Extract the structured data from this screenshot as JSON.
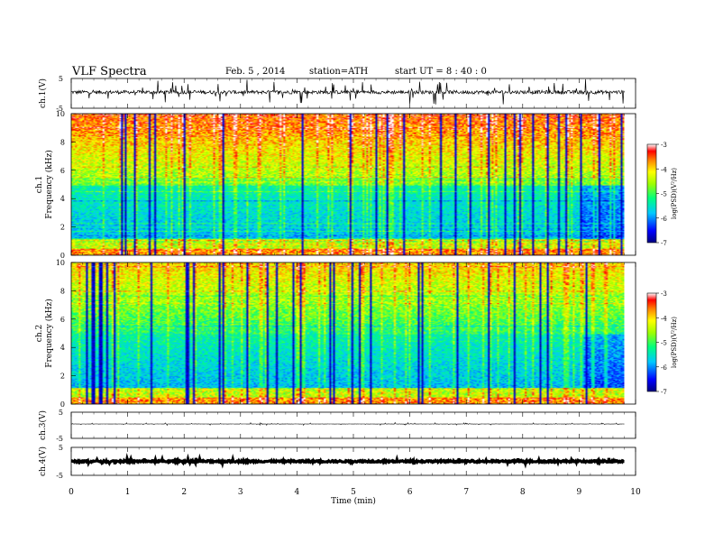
{
  "header": {
    "title": "VLF  Spectra",
    "date": "Feb. 5  , 2014",
    "station": "station=ATH",
    "start_ut": "start  UT  =   8  : 40 : 0"
  },
  "chart_data": [
    {
      "id": "ch1-waveform",
      "type": "line",
      "ylabel": "ch.1(V)",
      "yticks": [
        "5",
        "-5"
      ],
      "ylim": [
        -5,
        5
      ],
      "xlim": [
        0,
        10
      ],
      "data_end_min": 9.8,
      "baseline": 0.4,
      "noise": 0.6,
      "spikes": 1.6,
      "line_color": "#000000"
    },
    {
      "id": "ch1-spectrogram",
      "type": "heatmap",
      "ylabel": "Frequency  (kHz)",
      "channel_label": "ch.1",
      "yticks": [
        "10",
        "8",
        "6",
        "4",
        "2",
        "0"
      ],
      "ylim": [
        0,
        10
      ],
      "xlim": [
        0,
        10
      ],
      "data_end_min": 9.8,
      "zlim": [
        -7,
        -3
      ],
      "colorbar_label": "log(PSD)(V²/Hz)",
      "colorbar_ticks": [
        "-3",
        "-4",
        "-5",
        "-6",
        "-7"
      ]
    },
    {
      "id": "ch2-spectrogram",
      "type": "heatmap",
      "ylabel": "Frequency  (kHz)",
      "channel_label": "ch.2",
      "yticks": [
        "10",
        "8",
        "6",
        "4",
        "2",
        "0"
      ],
      "ylim": [
        0,
        10
      ],
      "xlim": [
        0,
        10
      ],
      "data_end_min": 9.8,
      "zlim": [
        -7,
        -3
      ],
      "colorbar_label": "log(PSD)(V²/Hz)",
      "colorbar_ticks": [
        "-3",
        "-4",
        "-5",
        "-6",
        "-7"
      ]
    },
    {
      "id": "ch3-waveform",
      "type": "line",
      "ylabel": "ch.3(V)",
      "yticks": [
        "5",
        "-5"
      ],
      "ylim": [
        -5,
        5
      ],
      "xlim": [
        0,
        10
      ],
      "data_end_min": 9.8,
      "baseline": 0.5,
      "noise": 0.04,
      "spikes": 0.2,
      "line_color": "#000000"
    },
    {
      "id": "ch4-waveform",
      "type": "line",
      "ylabel": "ch.4(V)",
      "yticks": [
        "5",
        "-5"
      ],
      "ylim": [
        -5,
        5
      ],
      "xlim": [
        0,
        10
      ],
      "data_end_min": 9.8,
      "baseline": 0.0,
      "noise": 0.3,
      "spikes": 0.4,
      "line_color": "#000000"
    }
  ],
  "x_axis": {
    "label": "Time  (min)",
    "ticks": [
      "0",
      "1",
      "2",
      "3",
      "4",
      "5",
      "6",
      "7",
      "8",
      "9",
      "10"
    ]
  }
}
